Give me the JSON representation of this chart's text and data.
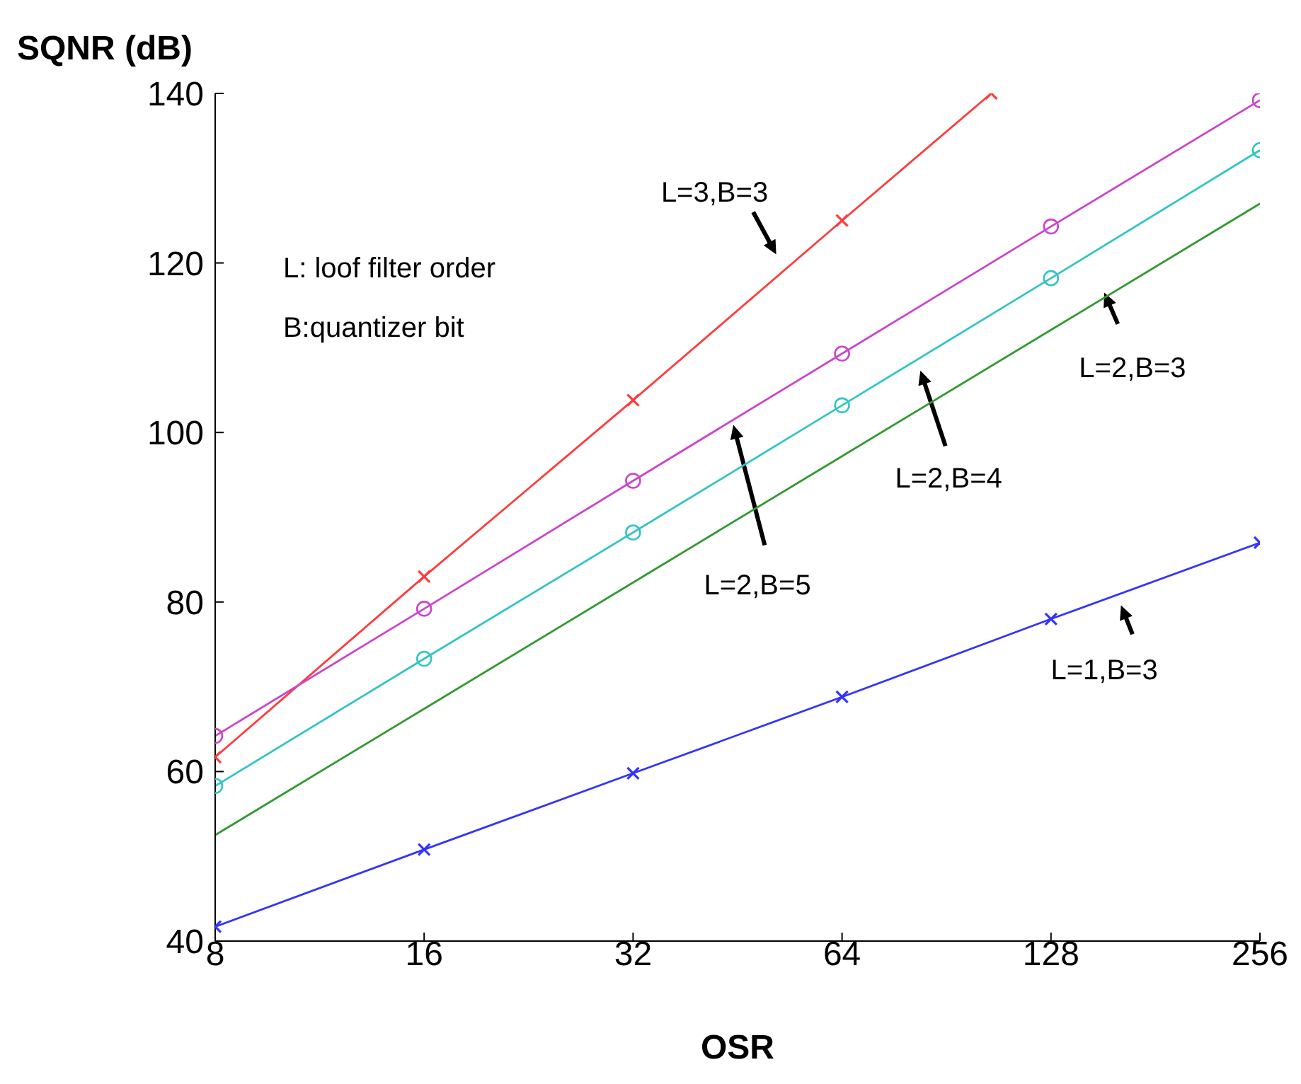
{
  "chart_data": {
    "type": "line",
    "ylabel": "SQNR (dB)",
    "xlabel": "OSR",
    "log": "x",
    "xlim": [
      8,
      256
    ],
    "xticks": [
      8,
      16,
      32,
      64,
      128,
      256
    ],
    "ylim": [
      40,
      140
    ],
    "yticks": [
      40,
      60,
      80,
      100,
      120,
      140
    ],
    "line_style": "solid",
    "series": [
      {
        "color": "#ff3b3b",
        "marker": "cross",
        "x": [
          8,
          16,
          32,
          64,
          105
        ],
        "values": [
          61.7,
          83,
          103.8,
          125,
          140
        ]
      },
      {
        "color": "#cc44cc",
        "marker": "circle",
        "x": [
          8,
          16,
          32,
          64,
          128,
          256
        ],
        "values": [
          64.2,
          79.2,
          94.3,
          109.3,
          124.3,
          139.2
        ]
      },
      {
        "color": "#33c4c4",
        "marker": "circle",
        "x": [
          8,
          16,
          32,
          64,
          128,
          256
        ],
        "values": [
          58.3,
          73.3,
          88.2,
          103.2,
          118.2,
          133.3
        ]
      },
      {
        "color": "#339933",
        "marker": "none",
        "x": [
          8,
          16,
          32,
          64,
          128,
          256
        ],
        "values": [
          52.5,
          67.4,
          82.3,
          97.2,
          112.1,
          127
        ]
      },
      {
        "color": "#3333ff",
        "marker": "cross",
        "x": [
          8,
          16,
          32,
          64,
          128,
          256
        ],
        "values": [
          41.7,
          50.8,
          59.8,
          68.8,
          78,
          87
        ]
      }
    ],
    "annotations": [
      "L: loof filter order",
      "B:quantizer bit",
      "L=3,B=3",
      "L=2,B=3",
      "L=2,B=4",
      "L=2,B=5",
      "L=1,B=3"
    ]
  }
}
